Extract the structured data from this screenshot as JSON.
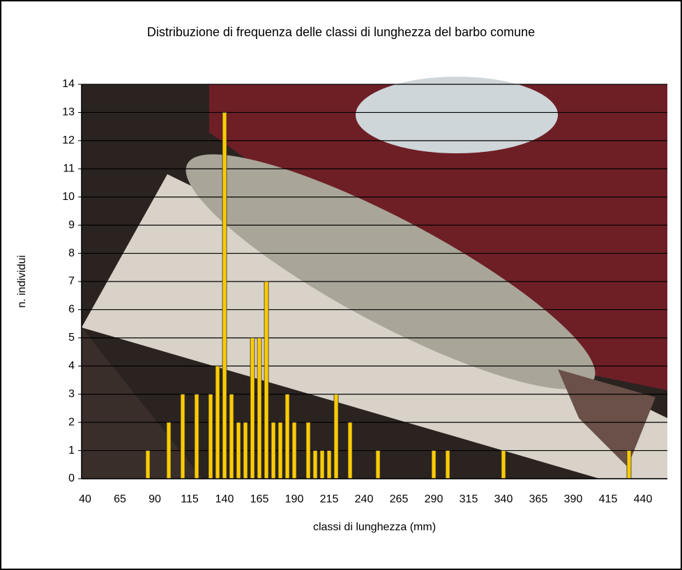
{
  "chart_data": {
    "type": "bar",
    "title": "Distribuzione di frequenza delle classi di lunghezza del barbo comune",
    "x_label": "classi di lunghezza (mm)",
    "y_label": "n. individui",
    "categories": [
      "40",
      null,
      null,
      null,
      null,
      "65",
      null,
      null,
      null,
      null,
      "90",
      null,
      null,
      null,
      null,
      "115",
      null,
      null,
      null,
      null,
      "140",
      null,
      null,
      null,
      null,
      "165",
      null,
      null,
      null,
      null,
      "190",
      null,
      null,
      null,
      null,
      "215",
      null,
      null,
      null,
      null,
      "240",
      null,
      null,
      null,
      null,
      "265",
      null,
      null,
      null,
      null,
      "290",
      null,
      null,
      null,
      null,
      "315",
      null,
      null,
      null,
      null,
      "340",
      null,
      null,
      null,
      null,
      "365",
      null,
      null,
      null,
      null,
      "390",
      null,
      null,
      null,
      null,
      "415",
      null,
      null,
      null,
      null,
      "440",
      null,
      null,
      null
    ],
    "values": [
      0,
      0,
      0,
      0,
      0,
      0,
      0,
      0,
      0,
      1,
      0,
      0,
      2,
      0,
      3,
      0,
      3,
      0,
      3,
      4,
      13,
      3,
      2,
      2,
      5,
      5,
      7,
      2,
      2,
      3,
      2,
      0,
      2,
      1,
      1,
      1,
      3,
      0,
      2,
      0,
      0,
      0,
      1,
      0,
      0,
      0,
      0,
      0,
      0,
      0,
      1,
      0,
      1,
      0,
      0,
      0,
      0,
      0,
      0,
      0,
      1,
      0,
      0,
      0,
      0,
      0,
      0,
      0,
      0,
      0,
      0,
      0,
      0,
      0,
      0,
      0,
      0,
      0,
      1,
      0,
      0,
      0,
      0,
      0
    ],
    "color": "#ffcc00",
    "ylim": [
      0,
      14
    ],
    "yticks": [
      0,
      1,
      2,
      3,
      4,
      5,
      6,
      7,
      8,
      9,
      10,
      11,
      12,
      13,
      14
    ],
    "grid": true
  }
}
